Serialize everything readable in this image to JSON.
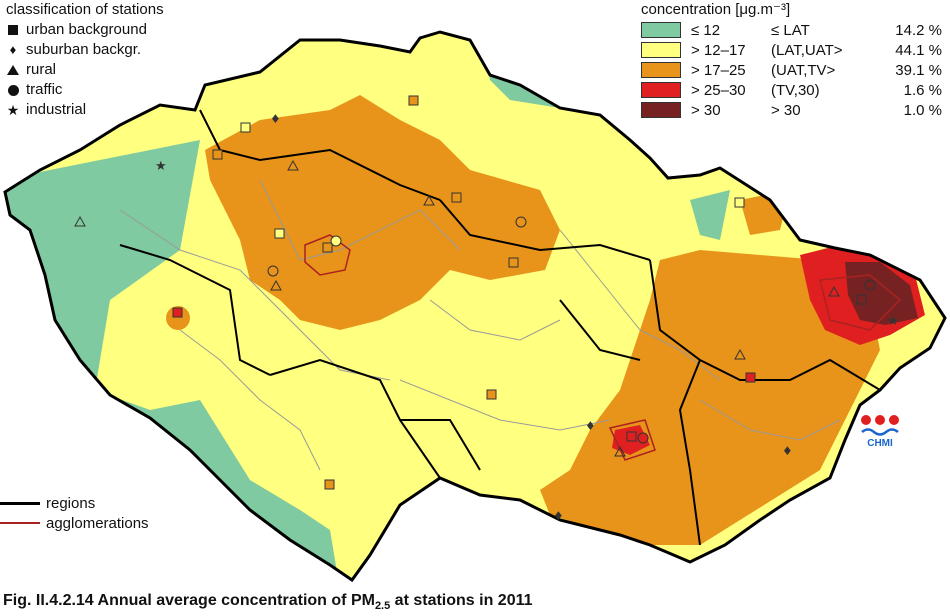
{
  "stations_legend": {
    "title": "classification of stations",
    "items": [
      {
        "label": "urban background",
        "icon": "square-icon"
      },
      {
        "label": "suburban backgr.",
        "icon": "diamond-icon"
      },
      {
        "label": "rural",
        "icon": "triangle-icon"
      },
      {
        "label": "traffic",
        "icon": "circle-icon"
      },
      {
        "label": "industrial",
        "icon": "star-icon"
      }
    ]
  },
  "concentration_legend": {
    "title": "concentration [μg.m⁻³]",
    "classes": [
      {
        "range": "≤ 12",
        "class": "≤ LAT",
        "percent": "14.2 %",
        "color": "#7fcaa1"
      },
      {
        "range": "> 12–17",
        "class": "(LAT,UAT>",
        "percent": "44.1 %",
        "color": "#ffff80"
      },
      {
        "range": "> 17–25",
        "class": "(UAT,TV>",
        "percent": "39.1 %",
        "color": "#e8931a"
      },
      {
        "range": "> 25–30",
        "class": "(TV,30)",
        "percent": "1.6 %",
        "color": "#e02020"
      },
      {
        "range": "> 30",
        "class": "> 30",
        "percent": "1.0 %",
        "color": "#772222"
      }
    ]
  },
  "lines_legend": {
    "regions_label": "regions",
    "agglomerations_label": "agglomerations",
    "regions_color": "#000000",
    "agglomerations_color": "#aa2222"
  },
  "logo": {
    "text": "CHMI"
  },
  "caption": {
    "prefix": "Fig. II.4.2.14  Annual average concentration of PM",
    "subscript": "2.5",
    "suffix": " at stations in 2011"
  }
}
